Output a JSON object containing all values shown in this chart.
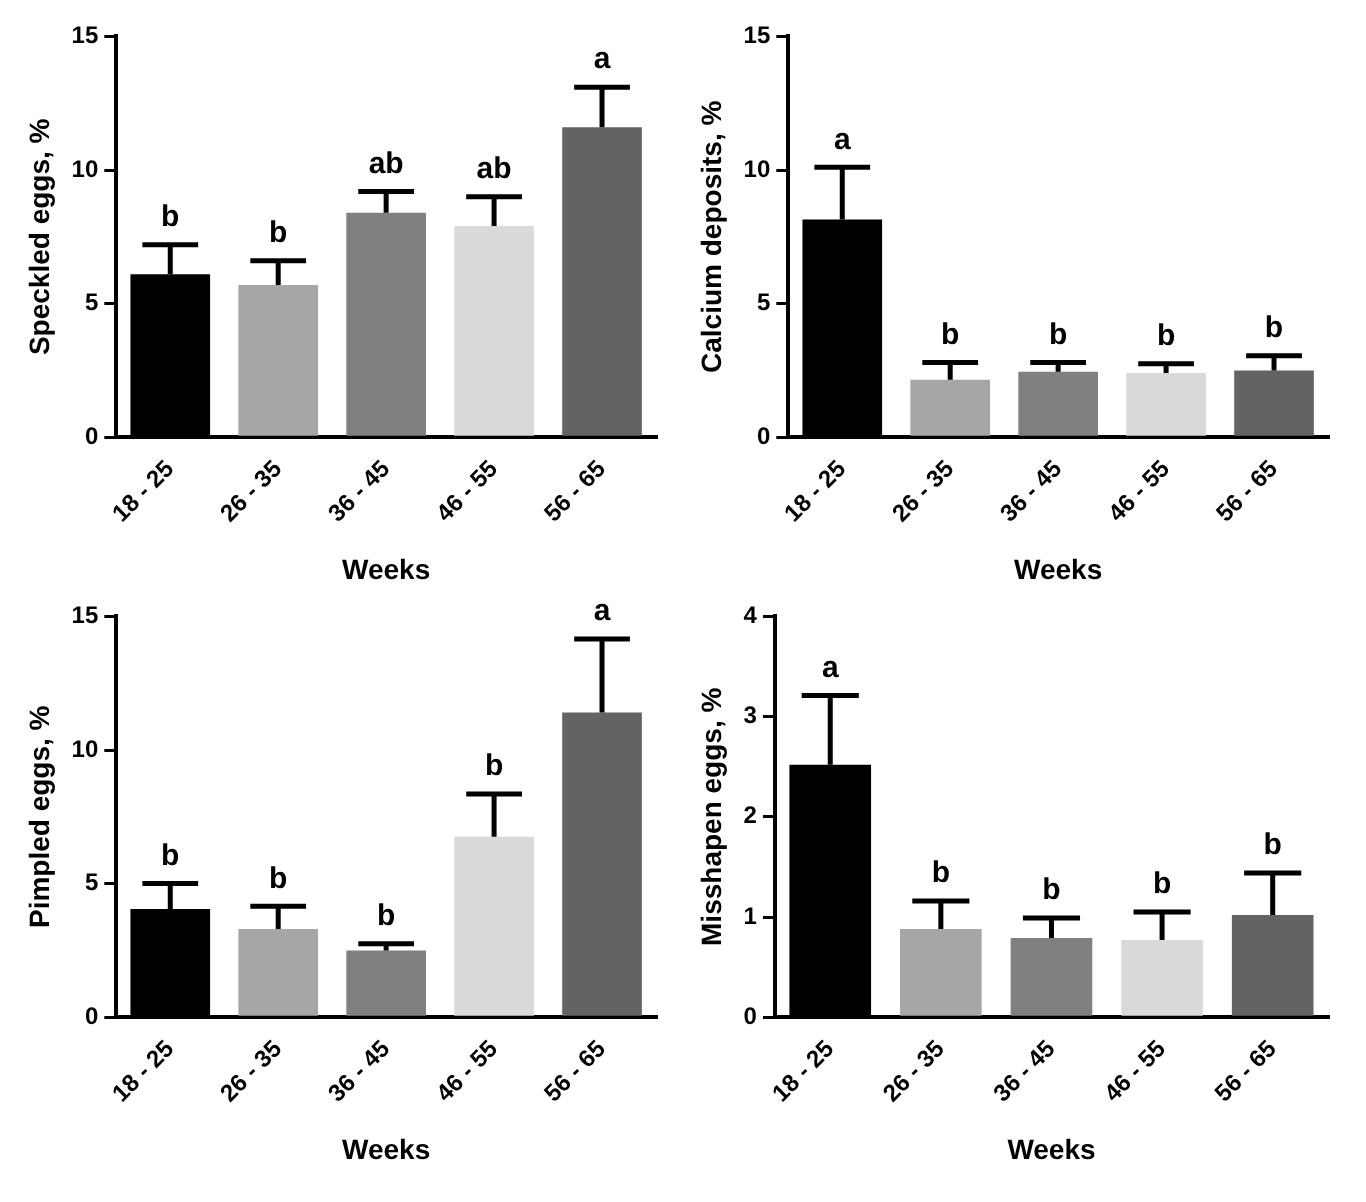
{
  "chart_data": [
    {
      "type": "bar",
      "xlabel": "Weeks",
      "ylabel": "Speckled eggs, %",
      "categories": [
        "18 - 25",
        "26 - 35",
        "36 - 45",
        "46 - 55",
        "56 - 65"
      ],
      "values": [
        6.1,
        5.7,
        8.4,
        7.9,
        11.6
      ],
      "colors": [
        "#000000",
        "#a6a6a8",
        "#808080",
        "#d9d9d9",
        "#636363"
      ],
      "errors": [
        [
          6.1,
          7.2
        ],
        [
          5.7,
          6.6
        ],
        [
          8.4,
          9.2
        ],
        [
          7.9,
          9.0
        ],
        [
          11.6,
          13.1
        ]
      ],
      "ylim": [
        0,
        15
      ],
      "yticks": [
        0,
        5,
        10,
        15
      ],
      "grid": false,
      "annotations": [
        {
          "text": "b",
          "x": "18 - 25",
          "y": 7.2
        },
        {
          "text": "b",
          "x": "26 - 35",
          "y": 6.6
        },
        {
          "text": "ab",
          "x": "36 - 45",
          "y": 9.2
        },
        {
          "text": "ab",
          "x": "46 - 55",
          "y": 9.0
        },
        {
          "text": "a",
          "x": "56 - 65",
          "y": 13.1
        }
      ]
    },
    {
      "type": "bar",
      "xlabel": "Weeks",
      "ylabel": "Calcium deposits, %",
      "categories": [
        "18 - 25",
        "26 - 35",
        "36 - 45",
        "46 - 55",
        "56 - 65"
      ],
      "values": [
        8.15,
        2.15,
        2.45,
        2.4,
        2.5
      ],
      "colors": [
        "#000000",
        "#a6a6a8",
        "#808080",
        "#d9d9d9",
        "#636363"
      ],
      "errors": [
        [
          8.15,
          10.1
        ],
        [
          2.15,
          2.8
        ],
        [
          2.45,
          2.8
        ],
        [
          2.4,
          2.75
        ],
        [
          2.5,
          3.05
        ]
      ],
      "ylim": [
        0,
        15
      ],
      "yticks": [
        0,
        5,
        10,
        15
      ],
      "grid": false,
      "annotations": [
        {
          "text": "a",
          "x": "18 - 25",
          "y": 10.1
        },
        {
          "text": "b",
          "x": "26 - 35",
          "y": 2.8
        },
        {
          "text": "b",
          "x": "36 - 45",
          "y": 2.8
        },
        {
          "text": "b",
          "x": "46 - 55",
          "y": 2.75
        },
        {
          "text": "b",
          "x": "56 - 65",
          "y": 3.05
        }
      ]
    },
    {
      "type": "bar",
      "xlabel": "Weeks",
      "ylabel": "Pimpled eggs, %",
      "categories": [
        "18 - 25",
        "26 - 35",
        "36 - 45",
        "46 - 55",
        "56 - 65"
      ],
      "values": [
        4.05,
        3.3,
        2.5,
        6.75,
        11.4
      ],
      "colors": [
        "#000000",
        "#a6a6a8",
        "#808080",
        "#d9d9d9",
        "#636363"
      ],
      "errors": [
        [
          4.05,
          5.0
        ],
        [
          3.3,
          4.15
        ],
        [
          2.5,
          2.75
        ],
        [
          6.75,
          8.35
        ],
        [
          11.4,
          14.15
        ]
      ],
      "ylim": [
        0,
        15
      ],
      "yticks": [
        0,
        5,
        10,
        15
      ],
      "grid": false,
      "annotations": [
        {
          "text": "b",
          "x": "18 - 25",
          "y": 5.0
        },
        {
          "text": "b",
          "x": "26 - 35",
          "y": 4.15
        },
        {
          "text": "b",
          "x": "36 - 45",
          "y": 2.75
        },
        {
          "text": "b",
          "x": "46 - 55",
          "y": 8.35
        },
        {
          "text": "a",
          "x": "56 - 65",
          "y": 14.15
        }
      ]
    },
    {
      "type": "bar",
      "xlabel": "Weeks",
      "ylabel": "Misshapen eggs, %",
      "categories": [
        "18 - 25",
        "26 - 35",
        "36 - 45",
        "46 - 55",
        "56 - 65"
      ],
      "values": [
        2.52,
        0.88,
        0.79,
        0.77,
        1.02
      ],
      "colors": [
        "#000000",
        "#a6a6a8",
        "#808080",
        "#d9d9d9",
        "#636363"
      ],
      "errors": [
        [
          2.52,
          3.21
        ],
        [
          0.88,
          1.16
        ],
        [
          0.79,
          0.99
        ],
        [
          0.77,
          1.05
        ],
        [
          1.02,
          1.44
        ]
      ],
      "ylim": [
        0,
        4
      ],
      "yticks": [
        0,
        1,
        2,
        3,
        4
      ],
      "grid": false,
      "annotations": [
        {
          "text": "a",
          "x": "18 - 25",
          "y": 3.21
        },
        {
          "text": "b",
          "x": "26 - 35",
          "y": 1.16
        },
        {
          "text": "b",
          "x": "36 - 45",
          "y": 0.99
        },
        {
          "text": "b",
          "x": "46 - 55",
          "y": 1.05
        },
        {
          "text": "b",
          "x": "56 - 65",
          "y": 1.44
        }
      ]
    }
  ]
}
